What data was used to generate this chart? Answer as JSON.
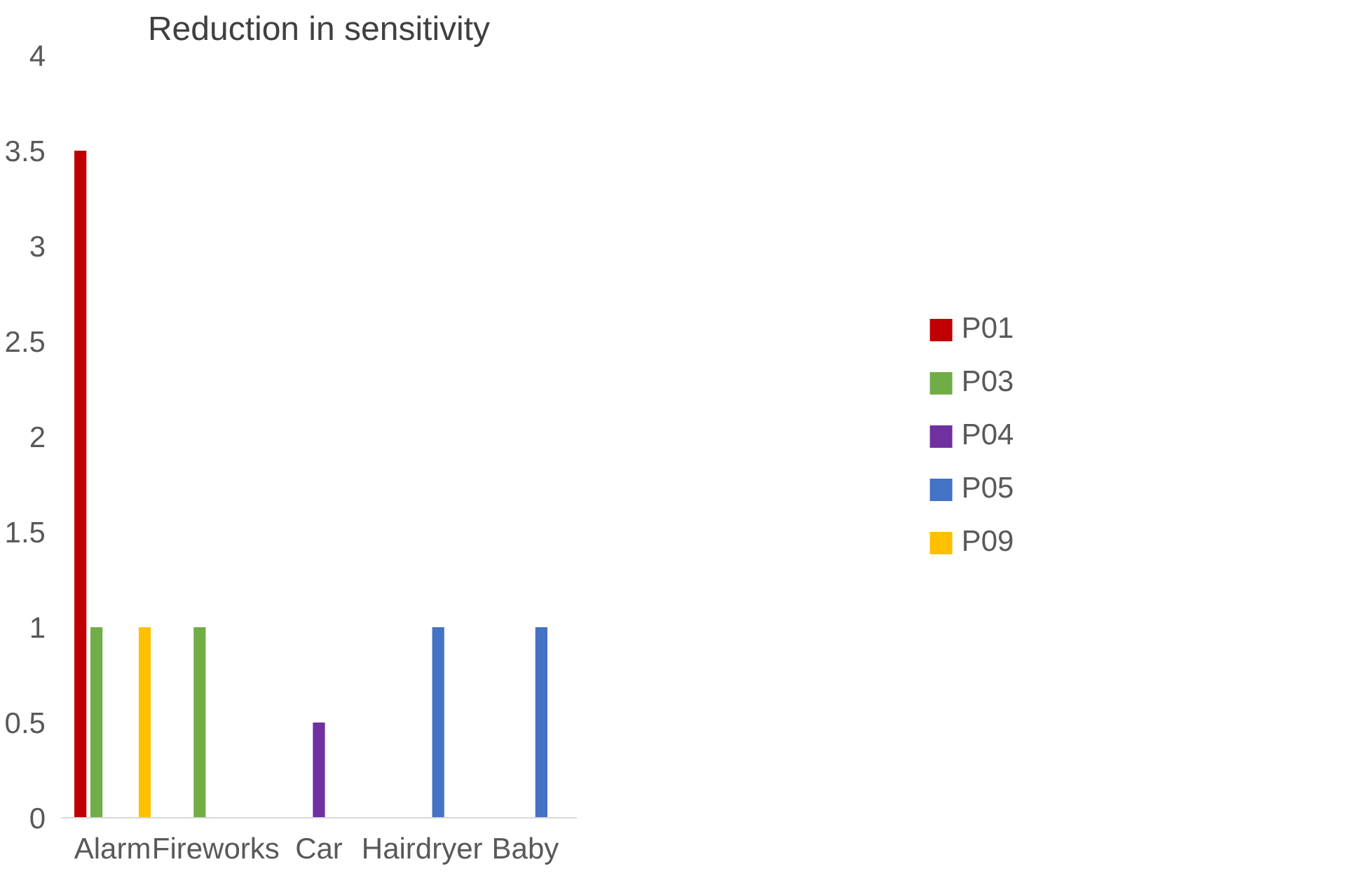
{
  "chart_data": {
    "type": "bar",
    "title": "Reduction in sensitivity",
    "categories": [
      "Alarm",
      "Fireworks",
      "Car",
      "Hairdryer",
      "Baby"
    ],
    "series": [
      {
        "name": "P01",
        "color": "#c00000",
        "values": [
          3.5,
          null,
          null,
          null,
          null
        ]
      },
      {
        "name": "P03",
        "color": "#70ad47",
        "values": [
          1,
          1,
          null,
          null,
          null
        ]
      },
      {
        "name": "P04",
        "color": "#7030a0",
        "values": [
          null,
          null,
          0.5,
          null,
          null
        ]
      },
      {
        "name": "P05",
        "color": "#4472c4",
        "values": [
          null,
          null,
          null,
          1,
          1
        ]
      },
      {
        "name": "P09",
        "color": "#ffc000",
        "values": [
          1,
          null,
          null,
          null,
          null
        ]
      }
    ],
    "ylim": [
      0,
      4
    ],
    "yticks": [
      0,
      0.5,
      1,
      1.5,
      2,
      2.5,
      3,
      3.5,
      4
    ],
    "grid": false,
    "legend": "right"
  }
}
